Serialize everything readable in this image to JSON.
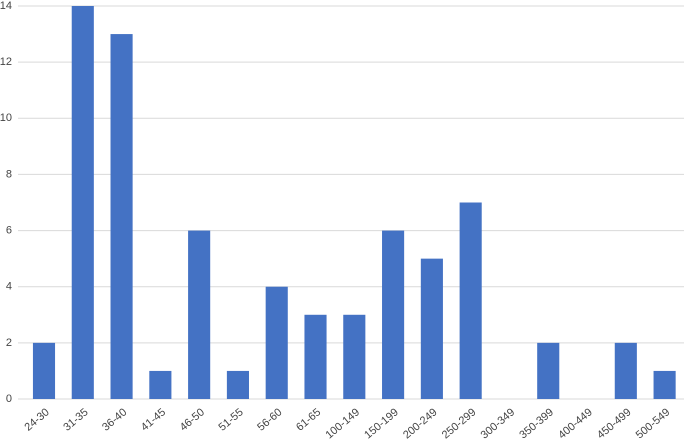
{
  "chart_data": {
    "type": "bar",
    "categories": [
      "24-30",
      "31-35",
      "36-40",
      "41-45",
      "46-50",
      "51-55",
      "56-60",
      "61-65",
      "100-149",
      "150-199",
      "200-249",
      "250-299",
      "300-349",
      "350-399",
      "400-449",
      "450-499",
      "500-549"
    ],
    "values": [
      2,
      14,
      13,
      1,
      6,
      1,
      4,
      3,
      3,
      6,
      5,
      7,
      0,
      2,
      0,
      2,
      1
    ],
    "color": "#4472c4",
    "ylim": [
      0,
      14
    ],
    "yticks": [
      0,
      2,
      4,
      6,
      8,
      10,
      12,
      14
    ],
    "grid": true
  }
}
